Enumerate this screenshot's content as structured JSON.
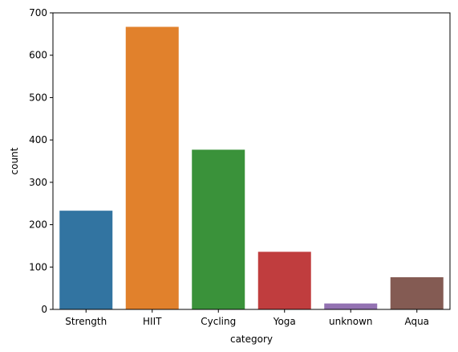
{
  "chart_data": {
    "type": "bar",
    "title": "",
    "xlabel": "category",
    "ylabel": "count",
    "categories": [
      "Strength",
      "HIIT",
      "Cycling",
      "Yoga",
      "unknown",
      "Aqua"
    ],
    "values": [
      233,
      667,
      377,
      136,
      14,
      76
    ],
    "colors": [
      "#3274a1",
      "#e1812c",
      "#3a923a",
      "#c03d3e",
      "#9372b2",
      "#845b53"
    ],
    "ylim": [
      0,
      700
    ],
    "yticks": [
      0,
      100,
      200,
      300,
      400,
      500,
      600,
      700
    ],
    "grid": false
  }
}
